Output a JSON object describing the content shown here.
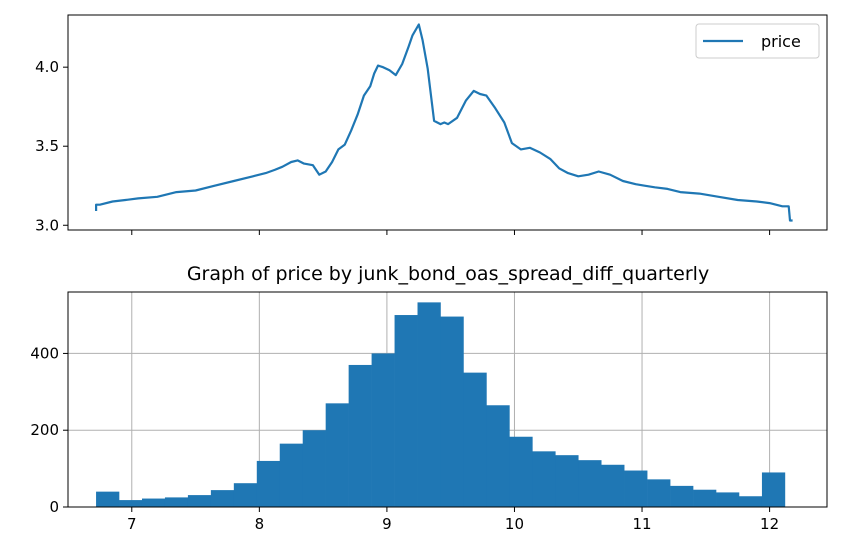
{
  "chart_data": [
    {
      "type": "line",
      "title": "",
      "xlabel": "",
      "ylabel": "",
      "xlim": [
        6.5,
        12.45
      ],
      "ylim": [
        2.97,
        4.33
      ],
      "yticks": [
        3.0,
        3.5,
        4.0
      ],
      "ytick_labels": [
        "3.0",
        "3.5",
        "4.0"
      ],
      "xticks": [
        7,
        8,
        9,
        10,
        11,
        12
      ],
      "show_x_tick_labels": false,
      "grid": false,
      "legend": {
        "position": "top-right",
        "entries": [
          "price"
        ]
      },
      "series": [
        {
          "name": "price",
          "color": "#1f77b4",
          "x": [
            6.72,
            6.72,
            6.75,
            6.85,
            6.95,
            7.05,
            7.2,
            7.35,
            7.5,
            7.65,
            7.8,
            7.95,
            8.05,
            8.12,
            8.18,
            8.25,
            8.3,
            8.35,
            8.42,
            8.47,
            8.52,
            8.57,
            8.62,
            8.67,
            8.72,
            8.77,
            8.82,
            8.87,
            8.9,
            8.93,
            8.97,
            9.02,
            9.07,
            9.12,
            9.17,
            9.2,
            9.25,
            9.28,
            9.32,
            9.37,
            9.42,
            9.45,
            9.48,
            9.55,
            9.62,
            9.68,
            9.73,
            9.78,
            9.85,
            9.92,
            9.98,
            10.05,
            10.12,
            10.2,
            10.28,
            10.35,
            10.42,
            10.5,
            10.58,
            10.66,
            10.75,
            10.85,
            10.95,
            11.02,
            11.1,
            11.2,
            11.3,
            11.45,
            11.6,
            11.75,
            11.9,
            12.0,
            12.1,
            12.15,
            12.16,
            12.18
          ],
          "y": [
            3.09,
            3.13,
            3.13,
            3.15,
            3.16,
            3.17,
            3.18,
            3.21,
            3.22,
            3.25,
            3.28,
            3.31,
            3.33,
            3.35,
            3.37,
            3.4,
            3.41,
            3.39,
            3.38,
            3.32,
            3.34,
            3.4,
            3.48,
            3.51,
            3.6,
            3.7,
            3.82,
            3.88,
            3.96,
            4.01,
            4.0,
            3.98,
            3.95,
            4.02,
            4.13,
            4.2,
            4.27,
            4.17,
            3.99,
            3.66,
            3.64,
            3.65,
            3.64,
            3.68,
            3.79,
            3.85,
            3.83,
            3.82,
            3.74,
            3.65,
            3.52,
            3.48,
            3.49,
            3.46,
            3.42,
            3.36,
            3.33,
            3.31,
            3.32,
            3.34,
            3.32,
            3.28,
            3.26,
            3.25,
            3.24,
            3.23,
            3.21,
            3.2,
            3.18,
            3.16,
            3.15,
            3.14,
            3.12,
            3.12,
            3.03,
            3.03
          ]
        }
      ]
    },
    {
      "type": "bar",
      "title": "Graph of price by junk_bond_oas_spread_diff_quarterly",
      "xlabel": "",
      "ylabel": "",
      "xlim": [
        6.5,
        12.45
      ],
      "ylim": [
        0,
        560
      ],
      "xticks": [
        7,
        8,
        9,
        10,
        11,
        12
      ],
      "xtick_labels": [
        "7",
        "8",
        "9",
        "10",
        "11",
        "12"
      ],
      "yticks": [
        0,
        200,
        400
      ],
      "ytick_labels": [
        "0",
        "200",
        "400"
      ],
      "grid": true,
      "color": "#1f77b4",
      "bin_start": 6.72,
      "bin_width": 0.18,
      "values": [
        40,
        18,
        22,
        25,
        31,
        44,
        62,
        120,
        165,
        200,
        270,
        370,
        400,
        500,
        533,
        496,
        350,
        265,
        183,
        145,
        135,
        122,
        110,
        95,
        72,
        55,
        45,
        38,
        28,
        90
      ]
    }
  ]
}
